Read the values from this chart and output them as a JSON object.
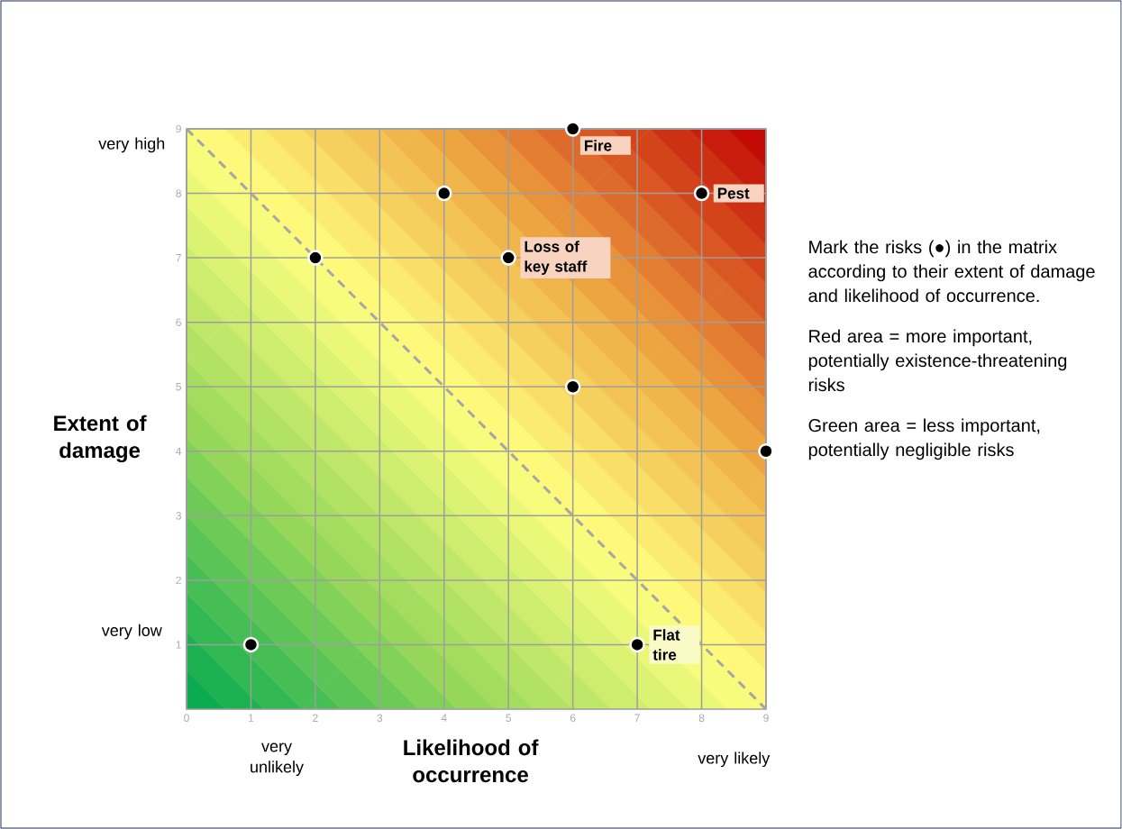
{
  "chart_data": {
    "type": "scatter",
    "xlabel": "Likelihood of occurrence",
    "ylabel": "Extent of damage",
    "xlim": [
      0,
      9
    ],
    "ylim": [
      0,
      9
    ],
    "xticks": [
      0,
      1,
      2,
      3,
      4,
      5,
      6,
      7,
      8,
      9
    ],
    "yticks": [
      1,
      2,
      3,
      4,
      5,
      6,
      7,
      8,
      9
    ],
    "grid": true,
    "series": [
      {
        "type": "line",
        "color": "#a6a6a6",
        "x": [
          0,
          9
        ],
        "values": [
          9,
          0
        ],
        "line_style": "dashed",
        "marker": "none"
      },
      {
        "color": "#000000",
        "x": [
          1,
          2,
          4,
          5,
          6,
          6,
          8,
          9,
          7
        ],
        "values": [
          1,
          7,
          8,
          7,
          9,
          5,
          8,
          4,
          1
        ],
        "marker": "circle"
      }
    ],
    "annotations": [
      {
        "text": "Fire",
        "x": 6,
        "y": 9
      },
      {
        "text": "Pest",
        "x": 8,
        "y": 8
      },
      {
        "text": "Loss of key staff",
        "x": 5,
        "y": 7
      },
      {
        "text": "Flat tire",
        "x": 7,
        "y": 1
      },
      "very high",
      "very low",
      "very unlikely",
      "very likely",
      "Mark the risks (●) in the matrix according to their extent of damage and likelihood of occurrence.",
      "Red area = more important, potentially existence-threatening risks",
      "Green area = less important, potentially negligible risks"
    ]
  }
}
